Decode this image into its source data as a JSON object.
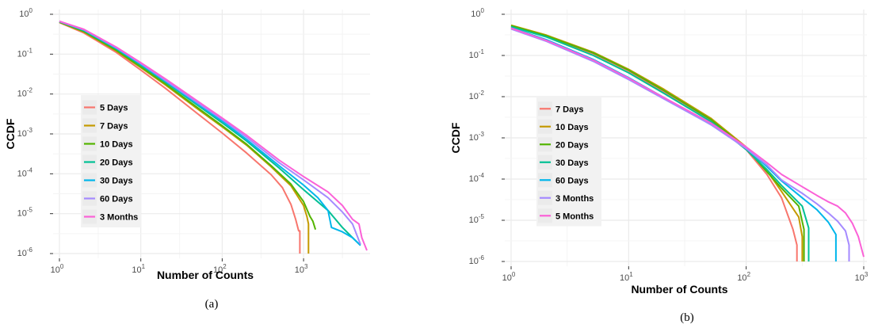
{
  "chart_data": [
    {
      "type": "line",
      "caption": "(a)",
      "xlabel": "Number of Counts",
      "ylabel": "CCDF",
      "xscale": "log",
      "yscale": "log",
      "xlim": [
        1,
        6000
      ],
      "ylim": [
        1e-06,
        1
      ],
      "x_ticks": [
        {
          "value": 1,
          "base": "10",
          "exp": "0"
        },
        {
          "value": 10,
          "base": "10",
          "exp": "1"
        },
        {
          "value": 100,
          "base": "10",
          "exp": "2"
        },
        {
          "value": 1000,
          "base": "10",
          "exp": "3"
        }
      ],
      "y_ticks": [
        {
          "value": 1,
          "base": "10",
          "exp": "0"
        },
        {
          "value": 0.1,
          "base": "10",
          "exp": "-1"
        },
        {
          "value": 0.01,
          "base": "10",
          "exp": "-2"
        },
        {
          "value": 0.001,
          "base": "10",
          "exp": "-3"
        },
        {
          "value": 0.0001,
          "base": "10",
          "exp": "-4"
        },
        {
          "value": 1e-05,
          "base": "10",
          "exp": "-5"
        },
        {
          "value": 1e-06,
          "base": "10",
          "exp": "-6"
        }
      ],
      "grid": true,
      "legend_position": "middle-left",
      "series": [
        {
          "name": "5 Days",
          "color": "#F8766D",
          "x": [
            1,
            2,
            5,
            10,
            20,
            50,
            100,
            200,
            400,
            550,
            700,
            800,
            870,
            900,
            900
          ],
          "y": [
            0.62,
            0.34,
            0.11,
            0.04,
            0.014,
            0.0032,
            0.00105,
            0.00033,
            9.5e-05,
            4.5e-05,
            1.7e-05,
            7.2e-06,
            3.7e-06,
            3.7e-06,
            1e-06
          ]
        },
        {
          "name": "7 Days",
          "color": "#C49A00",
          "x": [
            1,
            2,
            5,
            10,
            20,
            50,
            100,
            200,
            400,
            700,
            1000,
            1100,
            1150,
            1150
          ],
          "y": [
            0.63,
            0.36,
            0.12,
            0.046,
            0.017,
            0.0042,
            0.0015,
            0.00052,
            0.00015,
            5e-05,
            1.6e-05,
            8.5e-06,
            5.5e-06,
            1e-06
          ]
        },
        {
          "name": "10 Days",
          "color": "#53B400",
          "x": [
            1,
            2,
            5,
            10,
            20,
            50,
            100,
            200,
            400,
            700,
            1000,
            1200,
            1300,
            1400
          ],
          "y": [
            0.64,
            0.37,
            0.125,
            0.048,
            0.018,
            0.0045,
            0.0016,
            0.00055,
            0.00016,
            5.5e-05,
            2e-05,
            8.5e-06,
            6.5e-06,
            4e-06
          ]
        },
        {
          "name": "20 Days",
          "color": "#00C094",
          "x": [
            1,
            2,
            5,
            10,
            20,
            50,
            100,
            200,
            500,
            1000,
            2000,
            3000,
            4000,
            5000
          ],
          "y": [
            0.65,
            0.39,
            0.135,
            0.053,
            0.02,
            0.0052,
            0.0019,
            0.00066,
            0.00014,
            4e-05,
            1.2e-05,
            4.5e-06,
            2.5e-06,
            1.6e-06
          ]
        },
        {
          "name": "30 Days",
          "color": "#00B6EB",
          "x": [
            1,
            2,
            5,
            10,
            20,
            50,
            100,
            200,
            500,
            1000,
            1500,
            2000,
            2200,
            3000,
            4000,
            5000
          ],
          "y": [
            0.66,
            0.4,
            0.14,
            0.056,
            0.021,
            0.0056,
            0.0021,
            0.00072,
            0.00016,
            5.2e-05,
            2.5e-05,
            1.2e-05,
            4.5e-06,
            3.5e-06,
            2.5e-06,
            1.6e-06
          ]
        },
        {
          "name": "60 Days",
          "color": "#A58AFF",
          "x": [
            1,
            2,
            5,
            10,
            20,
            50,
            100,
            200,
            500,
            1000,
            2000,
            3000,
            4000,
            5000
          ],
          "y": [
            0.66,
            0.41,
            0.145,
            0.058,
            0.022,
            0.006,
            0.0023,
            0.00082,
            0.00019,
            7e-05,
            2.5e-05,
            1.1e-05,
            5.5e-06,
            1.7e-06
          ]
        },
        {
          "name": "3 Months",
          "color": "#FB61D7",
          "x": [
            1,
            2,
            5,
            10,
            20,
            50,
            100,
            200,
            500,
            1000,
            2000,
            3000,
            4000,
            4800,
            5200,
            6000
          ],
          "y": [
            0.67,
            0.42,
            0.15,
            0.061,
            0.024,
            0.0066,
            0.0025,
            0.00092,
            0.00022,
            8.5e-05,
            3.5e-05,
            1.6e-05,
            7.2e-06,
            5.5e-06,
            2.5e-06,
            1.2e-06
          ]
        }
      ]
    },
    {
      "type": "line",
      "caption": "(b)",
      "xlabel": "Number of Counts",
      "ylabel": "CCDF",
      "xscale": "log",
      "yscale": "log",
      "xlim": [
        1,
        1000
      ],
      "ylim": [
        1e-06,
        1
      ],
      "x_ticks": [
        {
          "value": 1,
          "base": "10",
          "exp": "0"
        },
        {
          "value": 10,
          "base": "10",
          "exp": "1"
        },
        {
          "value": 100,
          "base": "10",
          "exp": "2"
        },
        {
          "value": 1000,
          "base": "10",
          "exp": "3"
        }
      ],
      "y_ticks": [
        {
          "value": 1,
          "base": "10",
          "exp": "0"
        },
        {
          "value": 0.1,
          "base": "10",
          "exp": "-1"
        },
        {
          "value": 0.01,
          "base": "10",
          "exp": "-2"
        },
        {
          "value": 0.001,
          "base": "10",
          "exp": "-3"
        },
        {
          "value": 0.0001,
          "base": "10",
          "exp": "-4"
        },
        {
          "value": 1e-05,
          "base": "10",
          "exp": "-5"
        },
        {
          "value": 1e-06,
          "base": "10",
          "exp": "-6"
        }
      ],
      "grid": true,
      "legend_position": "middle-left",
      "series": [
        {
          "name": "7 Days",
          "color": "#F8766D",
          "x": [
            1,
            2,
            5,
            10,
            20,
            50,
            100,
            150,
            200,
            250,
            270,
            270
          ],
          "y": [
            0.52,
            0.29,
            0.11,
            0.042,
            0.013,
            0.0026,
            0.00052,
            0.00013,
            3.5e-05,
            6e-06,
            2.5e-06,
            1e-06
          ]
        },
        {
          "name": "10 Days",
          "color": "#C49A00",
          "x": [
            1,
            2,
            5,
            10,
            20,
            50,
            100,
            150,
            200,
            280,
            300,
            300
          ],
          "y": [
            0.54,
            0.31,
            0.12,
            0.046,
            0.015,
            0.003,
            0.0006,
            0.00016,
            5e-05,
            1.2e-05,
            4e-06,
            1e-06
          ]
        },
        {
          "name": "20 Days",
          "color": "#53B400",
          "x": [
            1,
            2,
            5,
            10,
            20,
            50,
            100,
            150,
            200,
            280,
            310,
            310
          ],
          "y": [
            0.53,
            0.3,
            0.115,
            0.044,
            0.014,
            0.0028,
            0.00056,
            0.00015,
            6e-05,
            2.2e-05,
            6e-06,
            1e-06
          ]
        },
        {
          "name": "30 Days",
          "color": "#00C094",
          "x": [
            1,
            2,
            5,
            10,
            20,
            50,
            100,
            150,
            200,
            300,
            340,
            340
          ],
          "y": [
            0.5,
            0.28,
            0.1,
            0.038,
            0.012,
            0.0025,
            0.00052,
            0.00017,
            7e-05,
            2.2e-05,
            6.5e-06,
            1e-06
          ]
        },
        {
          "name": "60 Days",
          "color": "#00B6EB",
          "x": [
            1,
            2,
            5,
            10,
            20,
            50,
            100,
            150,
            200,
            300,
            400,
            500,
            580,
            580
          ],
          "y": [
            0.47,
            0.24,
            0.08,
            0.029,
            0.0095,
            0.0021,
            0.00056,
            0.0002,
            9e-05,
            3.5e-05,
            1.8e-05,
            9e-06,
            4.5e-06,
            1e-06
          ]
        },
        {
          "name": "3 Months",
          "color": "#A58AFF",
          "x": [
            1,
            2,
            5,
            10,
            20,
            50,
            100,
            150,
            200,
            300,
            400,
            500,
            600,
            700,
            750,
            750
          ],
          "y": [
            0.44,
            0.22,
            0.072,
            0.026,
            0.0088,
            0.0021,
            0.00055,
            0.00022,
            9.5e-05,
            4.5e-05,
            2.5e-05,
            1.5e-05,
            9.5e-06,
            5.5e-06,
            2.5e-06,
            1e-06
          ]
        },
        {
          "name": "5 Months",
          "color": "#FB61D7",
          "x": [
            1,
            2,
            5,
            10,
            20,
            50,
            100,
            150,
            200,
            300,
            400,
            500,
            600,
            700,
            800,
            900,
            1000
          ],
          "y": [
            0.46,
            0.23,
            0.077,
            0.028,
            0.0095,
            0.0023,
            0.0006,
            0.00025,
            0.00013,
            6.5e-05,
            4e-05,
            2.8e-05,
            2.2e-05,
            1.5e-05,
            8.5e-06,
            4e-06,
            1.3e-06
          ]
        }
      ]
    }
  ]
}
